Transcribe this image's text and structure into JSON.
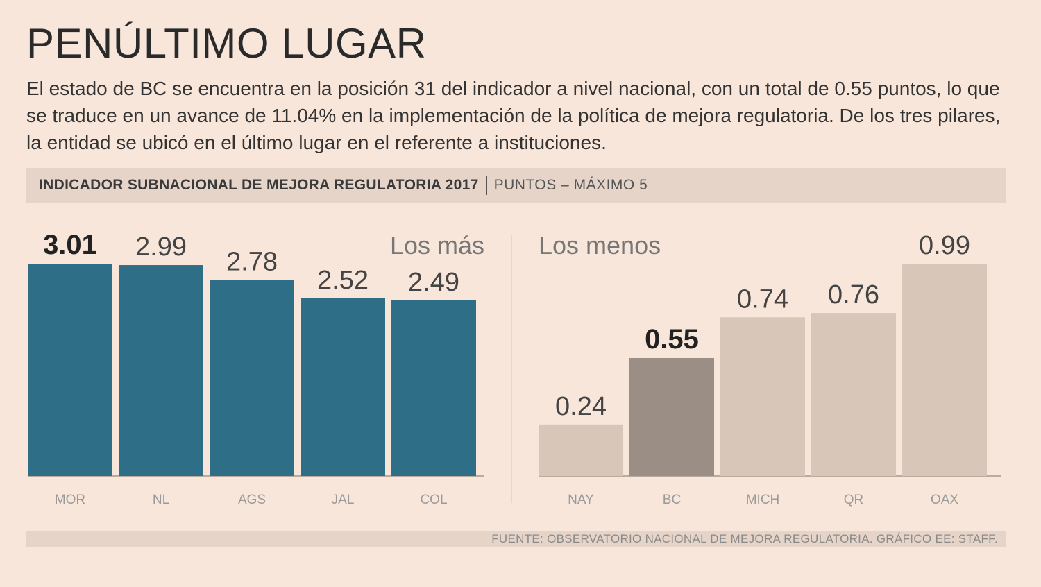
{
  "title": "PENÚLTIMO LUGAR",
  "lead": "El estado de BC se encuentra en la posición 31 del indicador a nivel nacional, con un total de 0.55 puntos, lo que se traduce en un avance de 11.04% en la implementación de la política de mejora regulatoria. De los tres pilares, la entidad se ubicó en el último lugar en el referente a instituciones.",
  "band": {
    "main": "INDICADOR SUBNACIONAL DE MEJORA REGULATORIA 2017",
    "sub": "PUNTOS – MÁXIMO 5"
  },
  "footer": "FUENTE: OBSERVATORIO NACIONAL DE MEJORA REGULATORIA. GRÁFICO EE: STAFF.",
  "colors": {
    "top": "#2f6e87",
    "low": "#d8c7b9",
    "highlight": "#9b8f85"
  },
  "chart_data": [
    {
      "type": "bar",
      "title": "Los más",
      "categories": [
        "MOR",
        "NL",
        "AGS",
        "JAL",
        "COL"
      ],
      "values": [
        3.01,
        2.99,
        2.78,
        2.52,
        2.49
      ],
      "value_labels": [
        "3.01",
        "2.99",
        "2.78",
        "2.52",
        "2.49"
      ],
      "highlight": "MOR",
      "ylim": [
        0,
        3.01
      ],
      "color_key": "top"
    },
    {
      "type": "bar",
      "title": "Los menos",
      "categories": [
        "NAY",
        "BC",
        "MICH",
        "QR",
        "OAX"
      ],
      "values": [
        0.24,
        0.55,
        0.74,
        0.76,
        0.99
      ],
      "value_labels": [
        "0.24",
        "0.55",
        "0.74",
        "0.76",
        "0.99"
      ],
      "highlight": "BC",
      "ylim": [
        0,
        0.99
      ],
      "color_key": "low"
    }
  ]
}
